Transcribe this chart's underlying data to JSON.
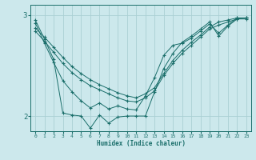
{
  "xlabel": "Humidex (Indice chaleur)",
  "ylabel": "",
  "xlim": [
    -0.5,
    23.5
  ],
  "ylim": [
    1.85,
    3.1
  ],
  "yticks": [
    2,
    3
  ],
  "xticks": [
    0,
    1,
    2,
    3,
    4,
    5,
    6,
    7,
    8,
    9,
    10,
    11,
    12,
    13,
    14,
    15,
    16,
    17,
    18,
    19,
    20,
    21,
    22,
    23
  ],
  "bg_color": "#cce8ec",
  "grid_color": "#aacfd4",
  "line_color": "#1a6e6a",
  "series": [
    {
      "x": [
        0,
        1,
        2,
        3,
        4,
        5,
        6,
        7,
        8,
        9,
        10,
        11,
        12,
        13,
        14,
        15,
        16,
        17,
        18,
        19,
        20,
        21,
        22,
        23
      ],
      "y": [
        2.87,
        2.78,
        2.68,
        2.58,
        2.49,
        2.42,
        2.36,
        2.31,
        2.27,
        2.23,
        2.2,
        2.18,
        2.22,
        2.28,
        2.42,
        2.55,
        2.65,
        2.73,
        2.8,
        2.88,
        2.93,
        2.95,
        2.97,
        2.97
      ]
    },
    {
      "x": [
        0,
        1,
        2,
        3,
        4,
        5,
        6,
        7,
        8,
        9,
        10,
        11,
        12,
        13,
        14,
        15,
        16,
        17,
        18,
        19,
        20,
        21,
        22,
        23
      ],
      "y": [
        2.84,
        2.74,
        2.63,
        2.52,
        2.43,
        2.36,
        2.3,
        2.26,
        2.22,
        2.18,
        2.15,
        2.14,
        2.18,
        2.25,
        2.4,
        2.52,
        2.62,
        2.7,
        2.78,
        2.86,
        2.9,
        2.93,
        2.96,
        2.96
      ]
    },
    {
      "x": [
        0,
        1,
        2,
        3,
        4,
        5,
        6,
        7,
        8,
        9,
        10,
        11,
        12,
        13,
        14,
        15,
        16,
        17,
        18,
        19,
        20,
        21,
        22,
        23
      ],
      "y": [
        2.92,
        2.72,
        2.53,
        2.35,
        2.24,
        2.15,
        2.08,
        2.13,
        2.07,
        2.1,
        2.07,
        2.06,
        2.2,
        2.38,
        2.6,
        2.7,
        2.72,
        2.77,
        2.84,
        2.91,
        2.82,
        2.9,
        2.97,
        2.97
      ]
    },
    {
      "x": [
        0,
        1,
        2,
        3,
        4,
        5,
        6,
        7,
        8,
        9,
        10,
        11,
        12,
        13,
        14,
        15,
        16,
        17,
        18,
        19,
        20,
        21,
        22,
        23
      ],
      "y": [
        2.95,
        2.76,
        2.56,
        2.03,
        2.01,
        2.0,
        1.88,
        2.01,
        1.93,
        1.99,
        2.0,
        2.0,
        2.0,
        2.24,
        2.47,
        2.62,
        2.73,
        2.79,
        2.86,
        2.93,
        2.79,
        2.89,
        2.96,
        2.97
      ]
    }
  ]
}
